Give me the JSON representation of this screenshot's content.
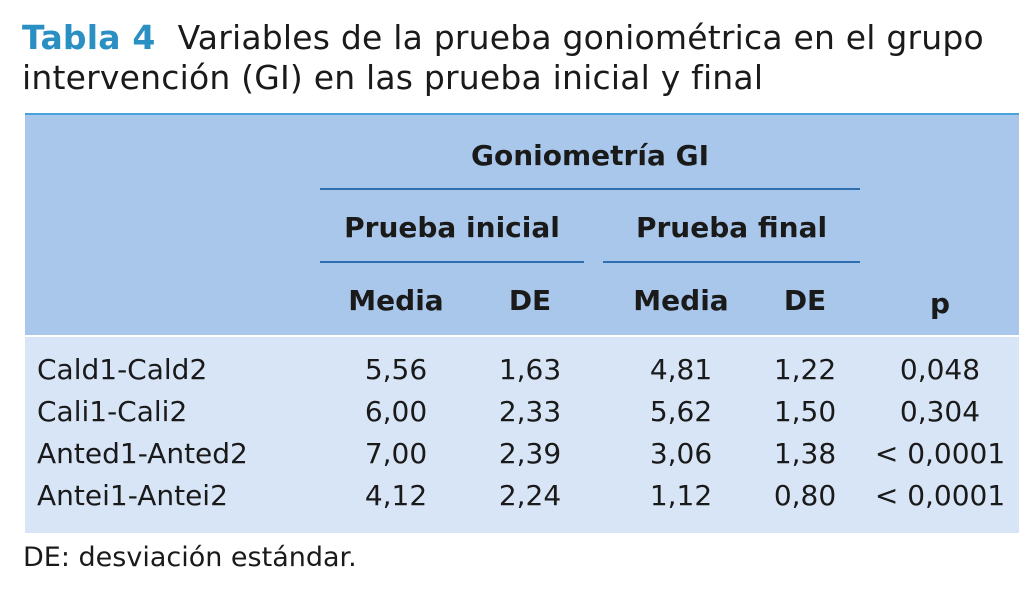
{
  "caption": {
    "number": "Tabla 4",
    "line1": "Variables de la prueba goniométrica en el grupo",
    "line2": "intervención (GI) en las prueba inicial y final"
  },
  "table": {
    "group_header": "Goniometría GI",
    "sub_headers": [
      "Prueba inicial",
      "Prueba final"
    ],
    "column_headers": [
      "Media",
      "DE",
      "Media",
      "DE",
      "p"
    ],
    "rows": [
      {
        "label": "Cald1-Cald2",
        "values": [
          "5,56",
          "1,63",
          "4,81",
          "1,22",
          "0,048"
        ]
      },
      {
        "label": "Cali1-Cali2",
        "values": [
          "6,00",
          "2,33",
          "5,62",
          "1,50",
          "0,304"
        ]
      },
      {
        "label": "Anted1-Anted2",
        "values": [
          "7,00",
          "2,39",
          "3,06",
          "1,38",
          "< 0,0001"
        ]
      },
      {
        "label": "Antei1-Antei2",
        "values": [
          "4,12",
          "2,24",
          "1,12",
          "0,80",
          "< 0,0001"
        ]
      }
    ]
  },
  "footnote": "DE: desviación estándar.",
  "colors": {
    "caption_number": "#2a8fc3",
    "header_background": "#a9c7ea",
    "body_background": "#d7e5f6",
    "header_rule": "#2d6fb0",
    "top_rule": "#4aa3d8"
  }
}
